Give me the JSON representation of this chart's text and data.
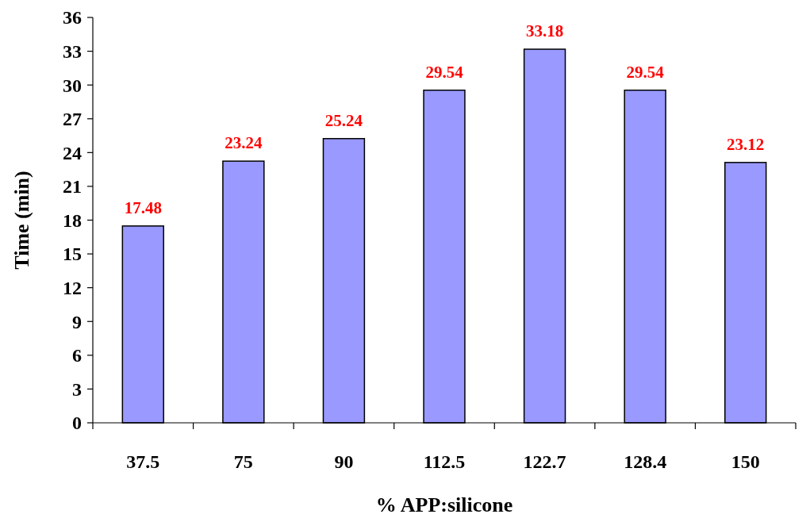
{
  "chart_data": {
    "type": "bar",
    "xlabel": "% APP:silicone",
    "ylabel": "Time (min)",
    "categories": [
      "37.5",
      "75",
      "90",
      "112.5",
      "122.7",
      "128.4",
      "150"
    ],
    "values": [
      17.48,
      23.24,
      25.24,
      29.54,
      33.18,
      29.54,
      23.12
    ],
    "color": "#9999ff",
    "ylim": [
      0,
      36
    ],
    "yticks": [
      0,
      3,
      6,
      9,
      12,
      15,
      18,
      21,
      24,
      27,
      30,
      33,
      36
    ],
    "data_labels": true,
    "grid": false
  }
}
